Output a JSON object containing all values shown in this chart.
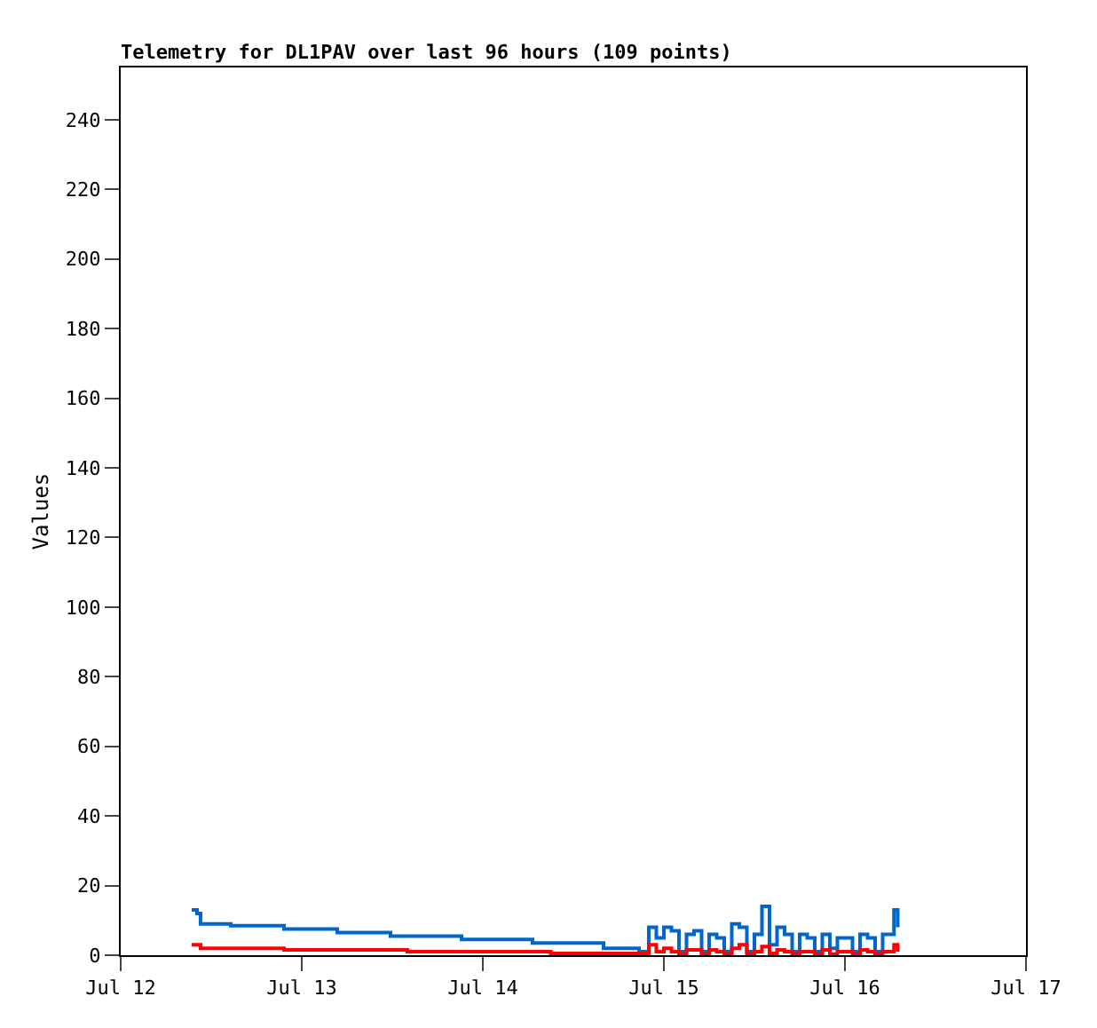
{
  "chart_data": {
    "type": "step",
    "title": "Telemetry for DL1PAV over last 96 hours (109 points)",
    "ylabel": "Values",
    "xlim": [
      "--07-12",
      "--07-17"
    ],
    "xticks": [
      {
        "value": "--07-12",
        "label": "Jul 12"
      },
      {
        "value": "--07-13",
        "label": "Jul 13"
      },
      {
        "value": "--07-14",
        "label": "Jul 14"
      },
      {
        "value": "--07-15",
        "label": "Jul 15"
      },
      {
        "value": "--07-16",
        "label": "Jul 16"
      },
      {
        "value": "--07-17",
        "label": "Jul 17"
      }
    ],
    "ylim": [
      0,
      255
    ],
    "yticks": [
      0,
      20,
      40,
      60,
      80,
      100,
      120,
      140,
      160,
      180,
      200,
      220,
      240
    ],
    "marker": "none",
    "line_style": "solid",
    "series": [
      {
        "color": "#0066cc",
        "x": [
          "--07-12T09:25",
          "--07-12T10:07",
          "--07-12T10:35",
          "--07-12T14:35",
          "--07-12T21:39",
          "--07-13T04:42",
          "--07-13T11:46",
          "--07-13T21:11",
          "--07-14T06:35",
          "--07-14T16:00",
          "--07-14T20:42",
          "--07-14T21:00",
          "--07-14T22:00",
          "--07-14T23:00",
          "--07-15T00:00",
          "--07-15T01:00",
          "--07-15T02:00",
          "--07-15T03:00",
          "--07-15T04:00",
          "--07-15T05:00",
          "--07-15T06:00",
          "--07-15T07:00",
          "--07-15T08:00",
          "--07-15T09:00",
          "--07-15T10:00",
          "--07-15T11:00",
          "--07-15T12:00",
          "--07-15T13:00",
          "--07-15T14:00",
          "--07-15T15:00",
          "--07-15T16:00",
          "--07-15T17:00",
          "--07-15T18:00",
          "--07-15T19:00",
          "--07-15T20:00",
          "--07-15T21:00",
          "--07-15T22:00",
          "--07-15T23:00",
          "--07-16T00:00",
          "--07-16T01:00",
          "--07-16T02:00",
          "--07-16T03:00",
          "--07-16T04:00",
          "--07-16T05:00",
          "--07-16T06:00",
          "--07-16T06:30",
          "--07-16T07:00"
        ],
        "values": [
          13,
          12,
          9,
          8.5,
          7.5,
          6.5,
          5.5,
          4.5,
          3.5,
          2,
          1,
          1,
          8,
          5,
          8,
          7,
          1,
          6,
          7,
          1,
          6,
          5,
          1,
          9,
          8,
          1,
          6,
          14,
          3,
          8,
          6,
          1,
          6,
          5,
          1,
          6,
          2,
          5,
          5,
          1,
          6,
          5,
          1,
          6,
          6,
          13,
          8
        ]
      },
      {
        "color": "#ff0000",
        "x": [
          "--07-12T09:25",
          "--07-12T10:35",
          "--07-12T21:39",
          "--07-13T14:00",
          "--07-14T09:00",
          "--07-14T21:00",
          "--07-14T22:00",
          "--07-14T23:00",
          "--07-15T00:00",
          "--07-15T01:00",
          "--07-15T02:00",
          "--07-15T03:00",
          "--07-15T04:00",
          "--07-15T05:00",
          "--07-15T06:00",
          "--07-15T07:00",
          "--07-15T08:00",
          "--07-15T09:00",
          "--07-15T10:00",
          "--07-15T11:00",
          "--07-15T12:00",
          "--07-15T13:00",
          "--07-15T14:00",
          "--07-15T15:00",
          "--07-15T16:00",
          "--07-15T17:00",
          "--07-15T18:00",
          "--07-15T19:00",
          "--07-15T20:00",
          "--07-15T21:00",
          "--07-15T22:00",
          "--07-15T23:00",
          "--07-16T00:00",
          "--07-16T01:00",
          "--07-16T02:00",
          "--07-16T03:00",
          "--07-16T04:00",
          "--07-16T05:00",
          "--07-16T06:00",
          "--07-16T06:30",
          "--07-16T07:00"
        ],
        "values": [
          3,
          2,
          1.5,
          1,
          0.5,
          0.5,
          3,
          1,
          2,
          1,
          0.3,
          1.5,
          1.5,
          0.3,
          1.5,
          1,
          0.3,
          2,
          3,
          0.3,
          1,
          2.5,
          0.5,
          1.5,
          1,
          0.3,
          1,
          1,
          0.3,
          1.5,
          0.3,
          1,
          1,
          0.3,
          1.5,
          1,
          0.3,
          1,
          1,
          3,
          1
        ]
      }
    ]
  }
}
